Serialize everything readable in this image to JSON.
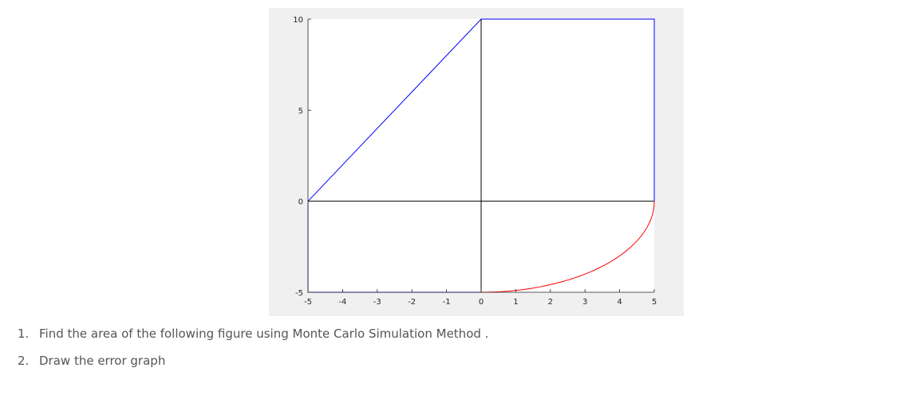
{
  "chart_data": {
    "type": "line",
    "title": "",
    "xlabel": "",
    "ylabel": "",
    "xlim": [
      -5,
      5
    ],
    "ylim": [
      -5,
      10
    ],
    "xticks": [
      -5,
      -4,
      -3,
      -2,
      -1,
      0,
      1,
      2,
      3,
      4,
      5
    ],
    "yticks": [
      -5,
      0,
      5,
      10
    ],
    "grid": false,
    "series": [
      {
        "color": "#0000ff",
        "x": [
          -5,
          0,
          5,
          5
        ],
        "y": [
          0,
          10,
          10,
          0
        ]
      },
      {
        "color": "#0000ff",
        "x": [
          -5,
          -5,
          0
        ],
        "y": [
          0,
          -5,
          -5
        ]
      },
      {
        "color": "#000000",
        "x": [
          -5,
          5
        ],
        "y": [
          0,
          0
        ]
      },
      {
        "color": "#000000",
        "x": [
          0,
          0
        ],
        "y": [
          -5,
          10
        ]
      },
      {
        "color": "#ff0000",
        "curve": "quarter-ellipse",
        "x": [
          0,
          1,
          2,
          3,
          4,
          4.5,
          4.9,
          5
        ],
        "y": [
          -5,
          -4.9,
          -4.58,
          -4.0,
          -3.0,
          -2.18,
          -1.0,
          0
        ]
      }
    ]
  },
  "questions": [
    {
      "number": "1.",
      "text": "Find the area of the following figure using Monte Carlo Simulation Method ."
    },
    {
      "number": "2.",
      "text": "Draw the error graph"
    }
  ]
}
